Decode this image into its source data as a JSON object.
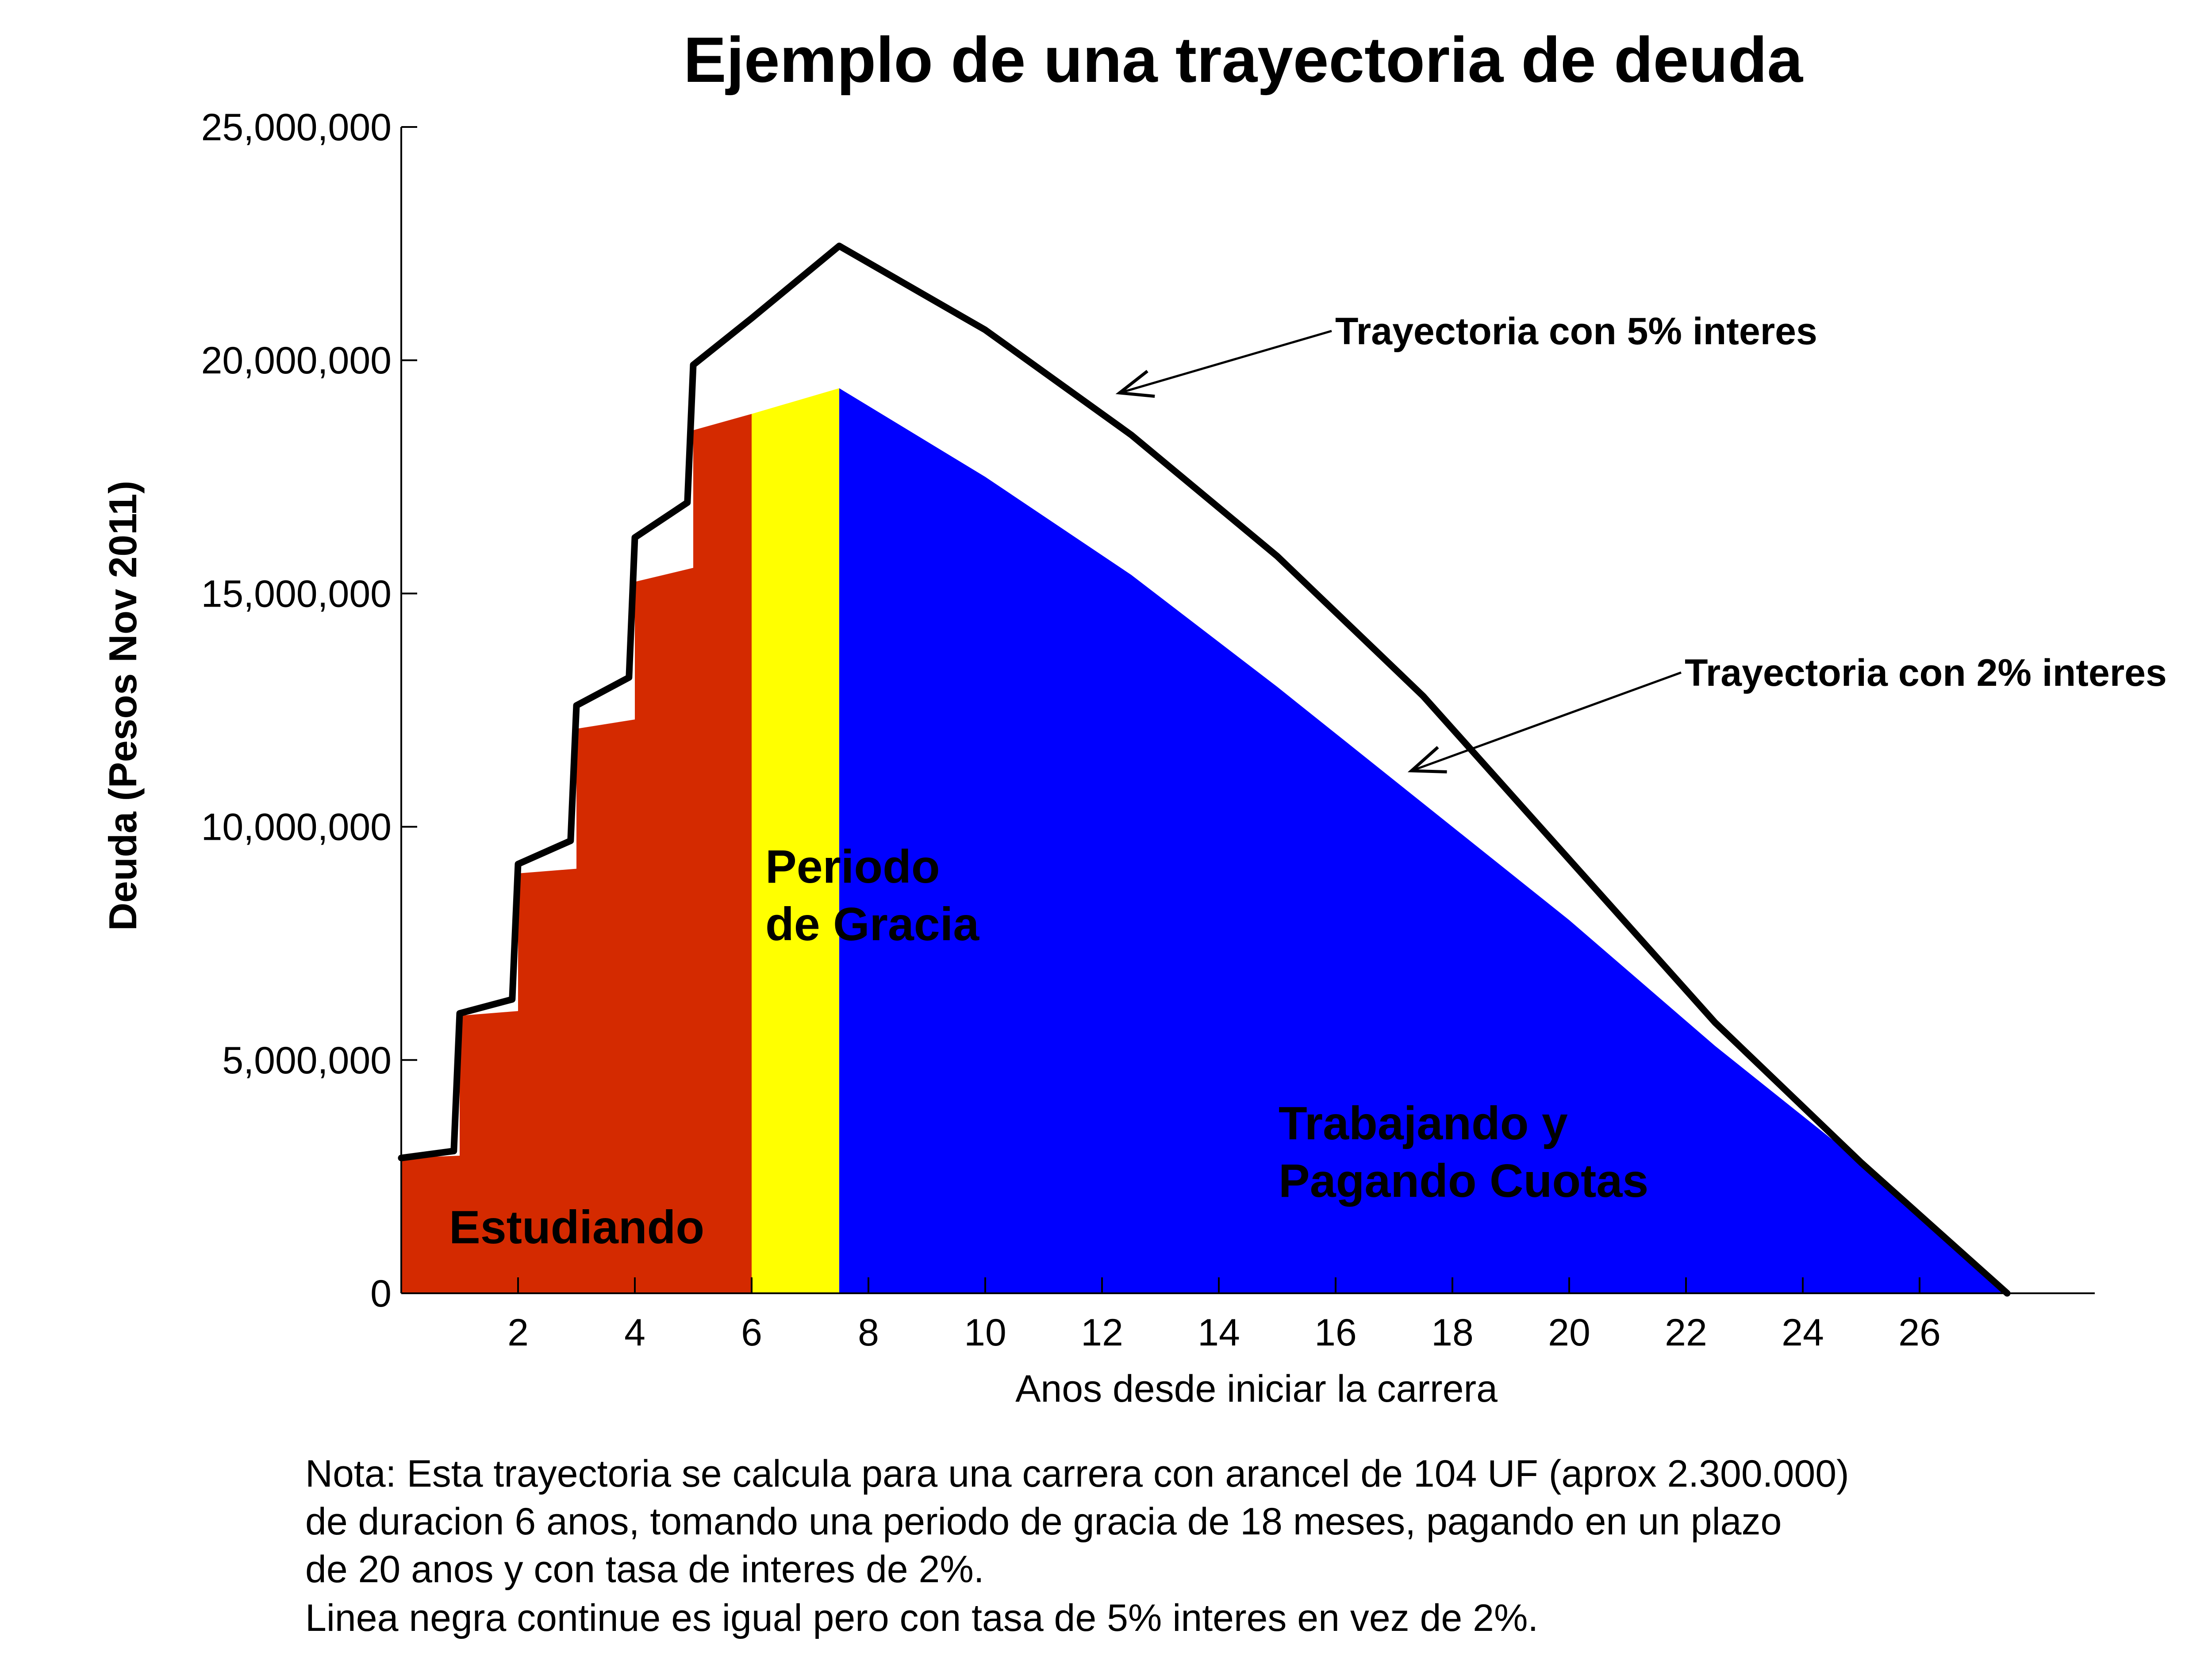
{
  "chart_data": {
    "type": "area",
    "title": "Ejemplo de una trayectoria de deuda",
    "xlabel": "Anos desde iniciar la carrera",
    "ylabel": "Deuda (Pesos Nov 2011)",
    "xlim": [
      0,
      29
    ],
    "ylim": [
      0,
      25000000
    ],
    "xticks": [
      2,
      4,
      6,
      8,
      10,
      12,
      14,
      16,
      18,
      20,
      22,
      24,
      26
    ],
    "xtick_labels": [
      "2",
      "4",
      "6",
      "8",
      "10",
      "12",
      "14",
      "16",
      "18",
      "20",
      "22",
      "24",
      "26"
    ],
    "yticks": [
      0,
      5000000,
      10000000,
      15000000,
      20000000,
      25000000
    ],
    "ytick_labels": [
      "0",
      "5,000,000",
      "10,000,000",
      "15,000,000",
      "20,000,000",
      "25,000,000"
    ],
    "series": [
      {
        "name": "Estudiando",
        "type": "area",
        "color": "#d42a00",
        "x": [
          0,
          1,
          1,
          2,
          2,
          3,
          3,
          4,
          4,
          5,
          5,
          6
        ],
        "y": [
          2900000,
          2950000,
          5950000,
          6050000,
          9000000,
          9100000,
          12100000,
          12300000,
          15250000,
          15550000,
          18500000,
          18850000
        ]
      },
      {
        "name": "Periodo de Gracia",
        "type": "area",
        "color": "#ffff00",
        "x": [
          6,
          7.5
        ],
        "y": [
          18850000,
          19400000
        ]
      },
      {
        "name": "Trabajando y Pagando Cuotas",
        "type": "area",
        "color": "#0000ff",
        "x": [
          7.5,
          10,
          12.5,
          15,
          17.5,
          20,
          22.5,
          25,
          27.5
        ],
        "y": [
          19400000,
          17500000,
          15400000,
          13000000,
          10500000,
          8000000,
          5300000,
          2800000,
          0
        ]
      },
      {
        "name": "Trayectoria con 5% interes",
        "type": "line",
        "color": "#000000",
        "x": [
          0,
          0.9,
          1,
          1.9,
          2,
          2.9,
          3,
          3.9,
          4,
          4.9,
          5,
          6,
          7.5,
          10,
          12.5,
          15,
          17.5,
          20,
          22.5,
          25,
          27.5
        ],
        "y": [
          2900000,
          3050000,
          6000000,
          6300000,
          9200000,
          9700000,
          12600000,
          13200000,
          16200000,
          16950000,
          19900000,
          20900000,
          22450000,
          20650000,
          18400000,
          15800000,
          12800000,
          9300000,
          5800000,
          2800000,
          0
        ]
      }
    ],
    "annotations": [
      {
        "text": "Trayectoria con 5% interes",
        "arrow_to": [
          12.3,
          19300000
        ]
      },
      {
        "text": "Trayectoria con 2% interes",
        "arrow_to": [
          17.3,
          11200000
        ]
      }
    ],
    "region_labels": [
      {
        "lines": [
          "Estudiando"
        ]
      },
      {
        "lines": [
          "Periodo",
          "de Gracia"
        ]
      },
      {
        "lines": [
          "Trabajando y",
          "Pagando Cuotas"
        ]
      }
    ],
    "grid": false,
    "legend": "none"
  },
  "note": [
    "Nota: Esta trayectoria se calcula para una carrera con arancel de 104 UF (aprox 2.300.000)",
    "de duracion 6 anos, tomando una periodo de gracia de 18 meses, pagando en un plazo",
    "de 20 anos y con tasa de interes de 2%.",
    "Linea negra continue es igual pero con tasa de 5% interes en vez de 2%."
  ]
}
